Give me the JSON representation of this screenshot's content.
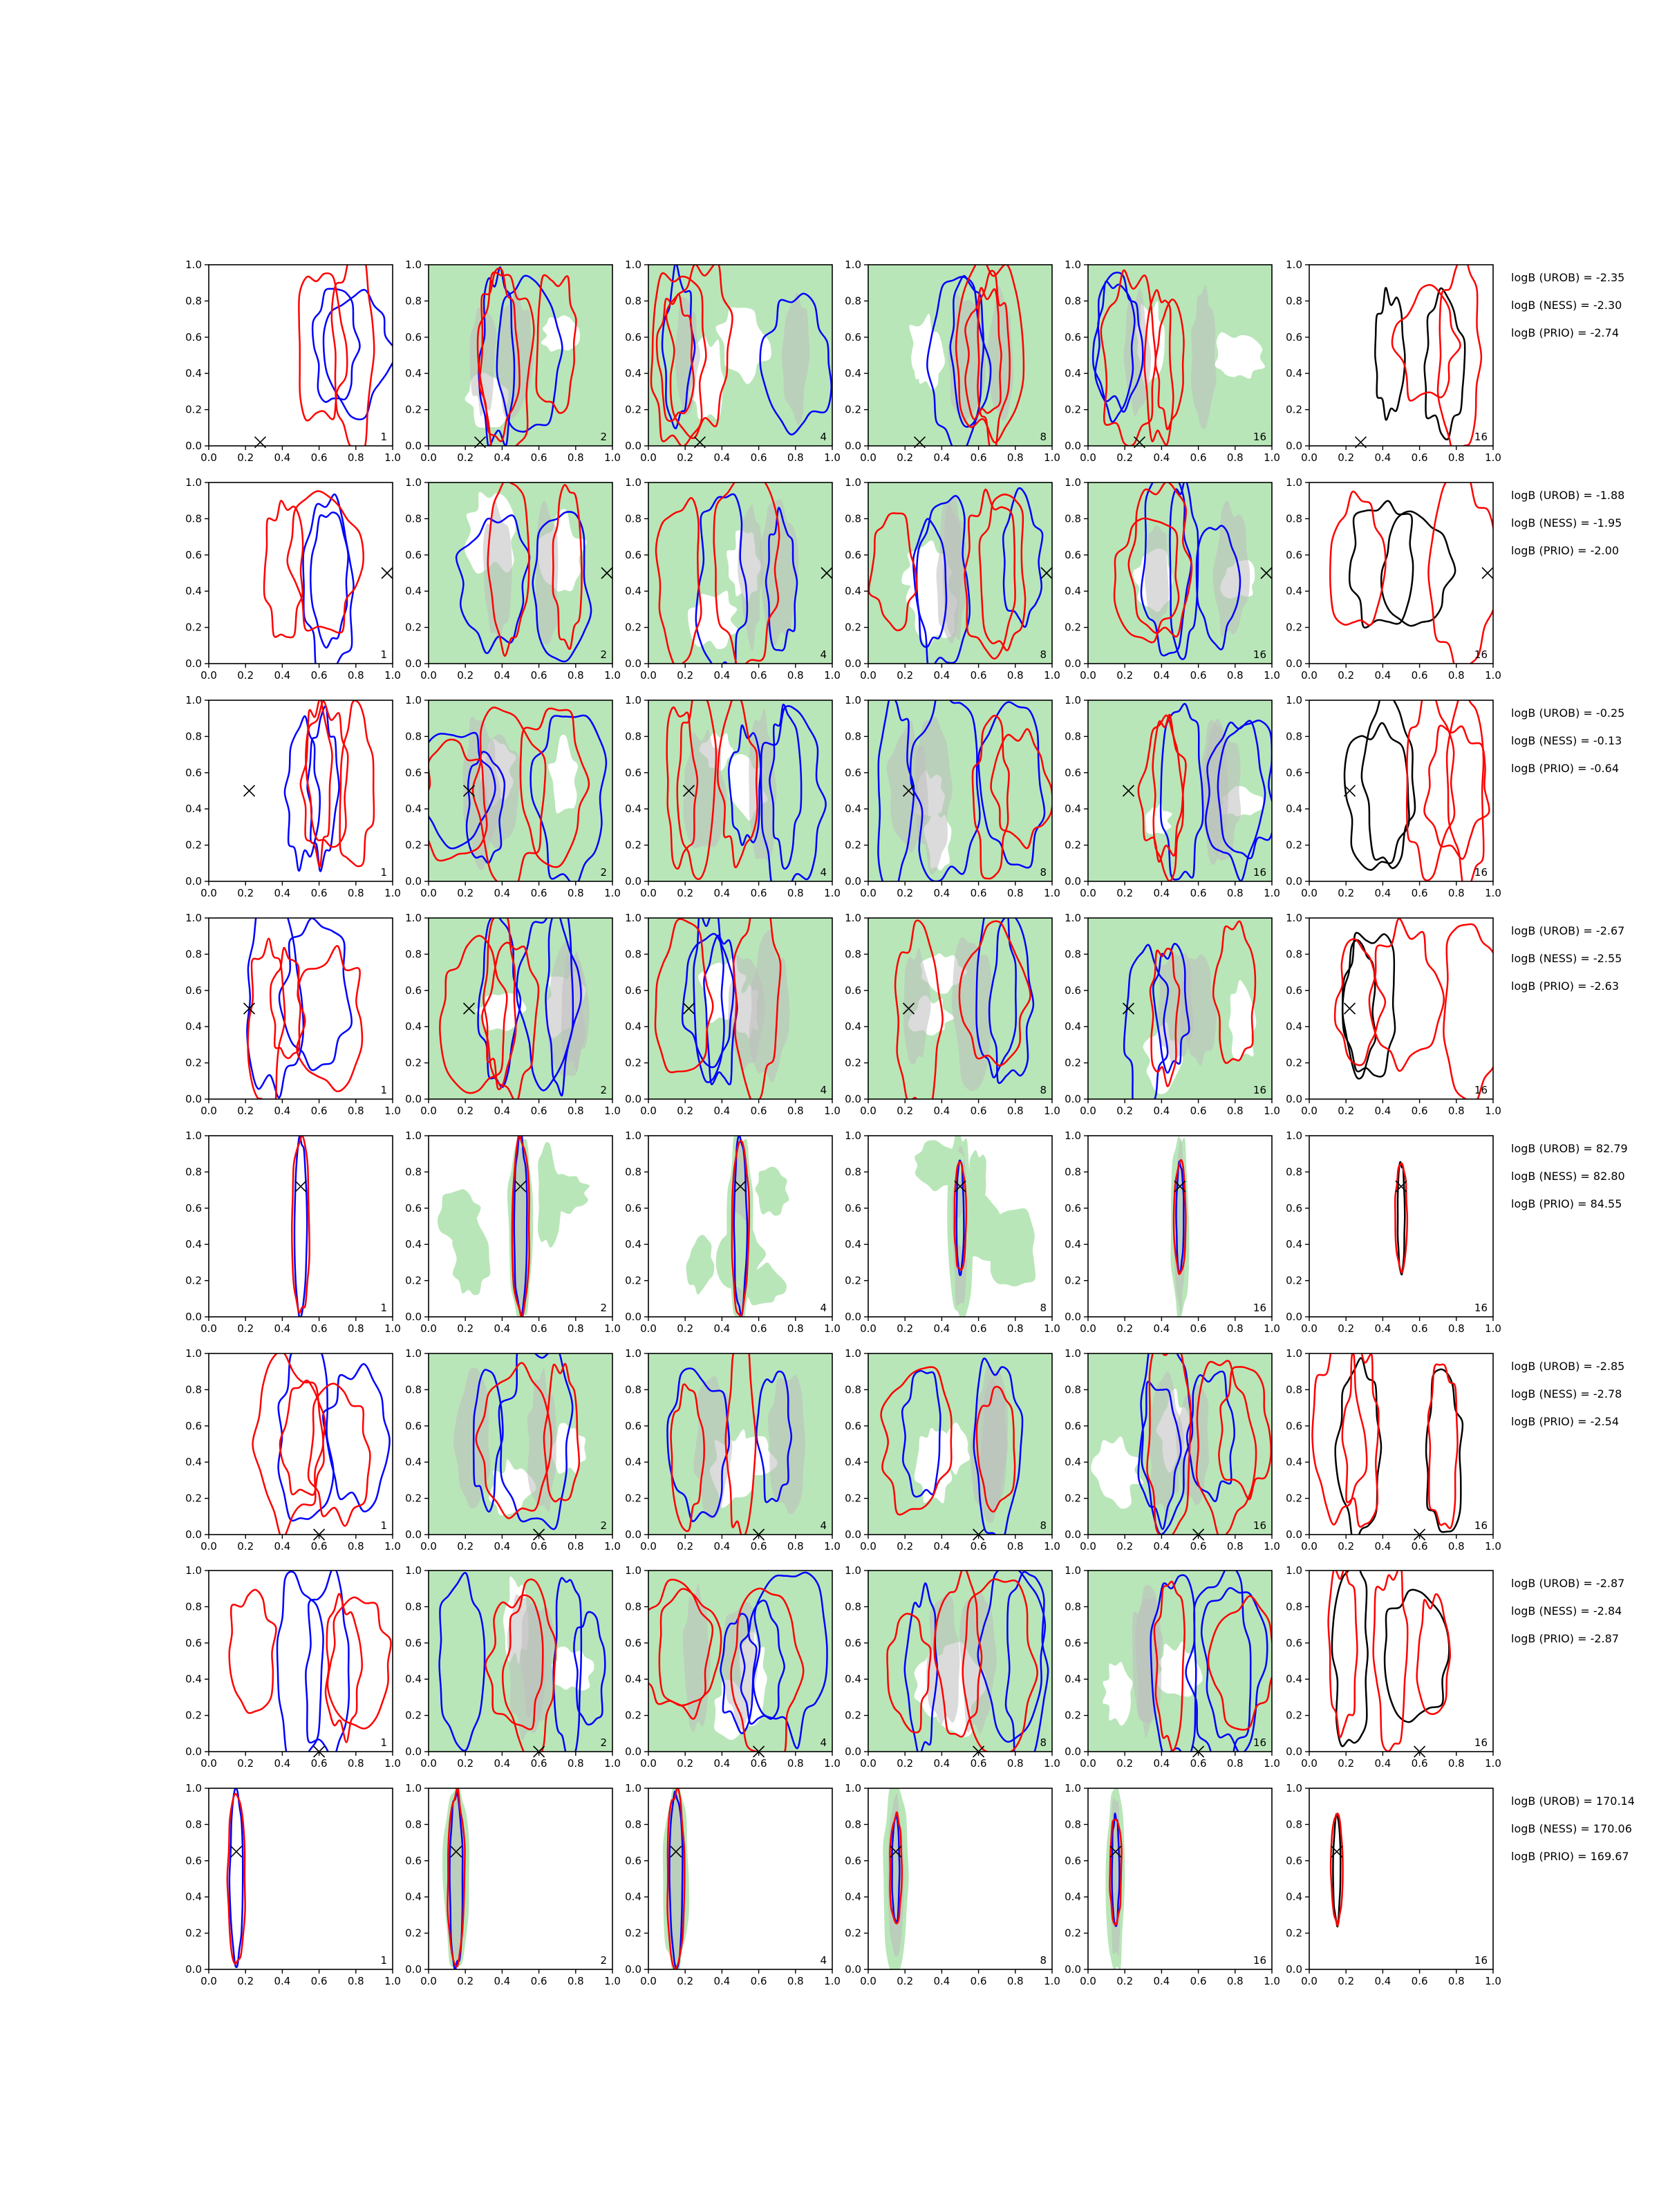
{
  "chart_data": {
    "type": "contour",
    "xlim": [
      0,
      1
    ],
    "ylim": [
      0,
      1
    ],
    "ticks": [
      "0.0",
      "0.2",
      "0.4",
      "0.6",
      "0.8",
      "1.0"
    ],
    "contour_colors": {
      "blue": "#0000ff",
      "red": "#ff0000",
      "black": "#000000",
      "green_fill": "#b8e6b8",
      "gray_fill": "#bdbdbd"
    },
    "panel_labels": [
      "1",
      "2",
      "4",
      "8",
      "16",
      "16"
    ],
    "rows": [
      {
        "marker": [
          0.28,
          0.02
        ],
        "stats": [
          "logB (UROB) = -2.35",
          "logB (NESS) = -2.30",
          "logB (PRIO) = -2.74"
        ]
      },
      {
        "marker": [
          0.97,
          0.5
        ],
        "stats": [
          "logB (UROB) = -1.88",
          "logB (NESS) = -1.95",
          "logB (PRIO) = -2.00"
        ]
      },
      {
        "marker": [
          0.22,
          0.5
        ],
        "stats": [
          "logB (UROB) = -0.25",
          "logB (NESS) = -0.13",
          "logB (PRIO) = -0.64"
        ]
      },
      {
        "marker": [
          0.22,
          0.5
        ],
        "stats": [
          "logB (UROB) = -2.67",
          "logB (NESS) = -2.55",
          "logB (PRIO) = -2.63"
        ]
      },
      {
        "marker": [
          0.5,
          0.72
        ],
        "stats": [
          "logB (UROB) = 82.79",
          "logB (NESS) = 82.80",
          "logB (PRIO) = 84.55"
        ]
      },
      {
        "marker": [
          0.6,
          0.0
        ],
        "stats": [
          "logB (UROB) = -2.85",
          "logB (NESS) = -2.78",
          "logB (PRIO) = -2.54"
        ]
      },
      {
        "marker": [
          0.6,
          0.0
        ],
        "stats": [
          "logB (UROB) = -2.87",
          "logB (NESS) = -2.84",
          "logB (PRIO) = -2.87"
        ]
      },
      {
        "marker": [
          0.15,
          0.65
        ],
        "stats": [
          "logB (UROB) = 170.14",
          "logB (NESS) = 170.06",
          "logB (PRIO) = 169.67"
        ]
      }
    ]
  }
}
